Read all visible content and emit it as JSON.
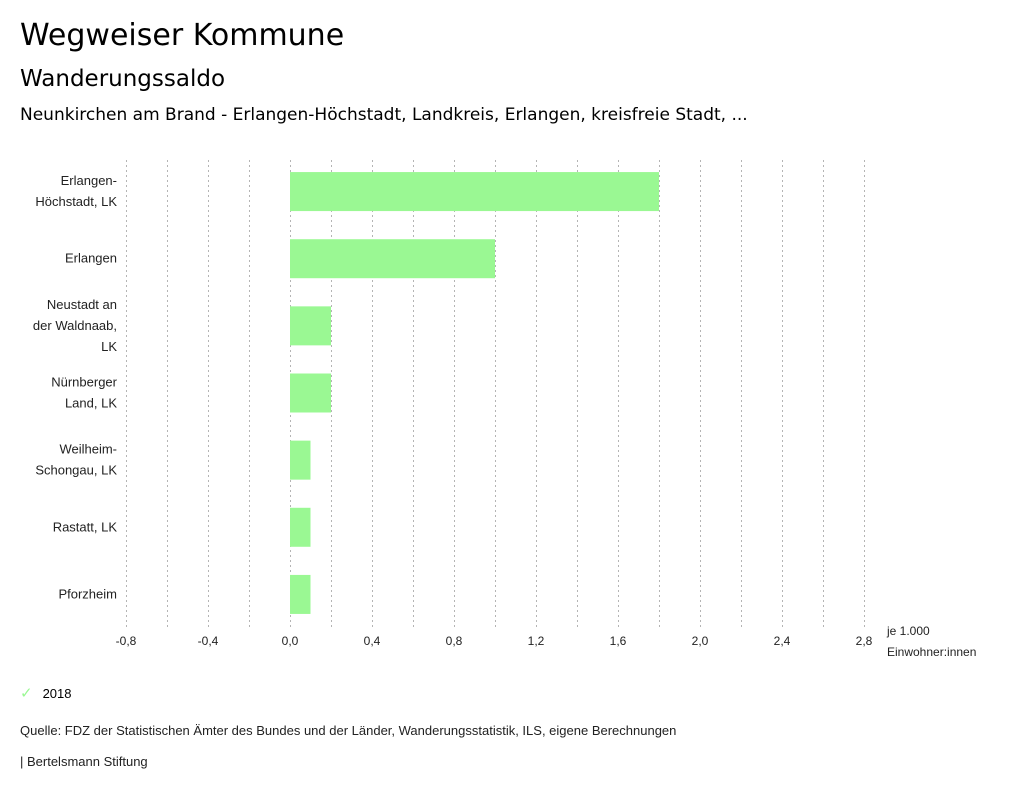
{
  "header": {
    "title": "Wegweiser Kommune",
    "subtitle": "Wanderungssaldo",
    "region": "Neunkirchen am Brand - Erlangen-Höchstadt, Landkreis, Erlangen, kreisfreie Stadt, ..."
  },
  "chart_data": {
    "type": "bar",
    "orientation": "horizontal",
    "title": "Wanderungssaldo",
    "categories": [
      [
        "Erlangen-",
        "Höchstadt, LK"
      ],
      [
        "Erlangen"
      ],
      [
        "Neustadt an",
        "der Waldnaab,",
        "LK"
      ],
      [
        "Nürnberger",
        "Land, LK"
      ],
      [
        "Weilheim-",
        "Schongau, LK"
      ],
      [
        "Rastatt, LK"
      ],
      [
        "Pforzheim"
      ]
    ],
    "series": [
      {
        "name": "2018",
        "color": "#9af893",
        "values": [
          1.8,
          1.0,
          0.2,
          0.2,
          0.1,
          0.1,
          0.1
        ]
      }
    ],
    "xlim": [
      -0.8,
      2.8
    ],
    "xticks": [
      -0.8,
      -0.4,
      0.0,
      0.4,
      0.8,
      1.2,
      1.6,
      2.0,
      2.4,
      2.8
    ],
    "xtick_labels": [
      "-0,8",
      "-0,4",
      "0,0",
      "0,4",
      "0,8",
      "1,2",
      "1,6",
      "2,0",
      "2,4",
      "2,8"
    ],
    "grid_step": 0.2,
    "grid": true,
    "xlabel": [
      "je 1.000",
      "Einwohner:innen"
    ],
    "ylabel": "",
    "legend_position": "bottom-left"
  },
  "legend": {
    "label": "2018"
  },
  "footer": {
    "source": "Quelle: FDZ der Statistischen Ämter des Bundes und der Länder, Wanderungsstatistik, ILS, eigene Berechnungen",
    "brand": "| Bertelsmann Stiftung"
  }
}
